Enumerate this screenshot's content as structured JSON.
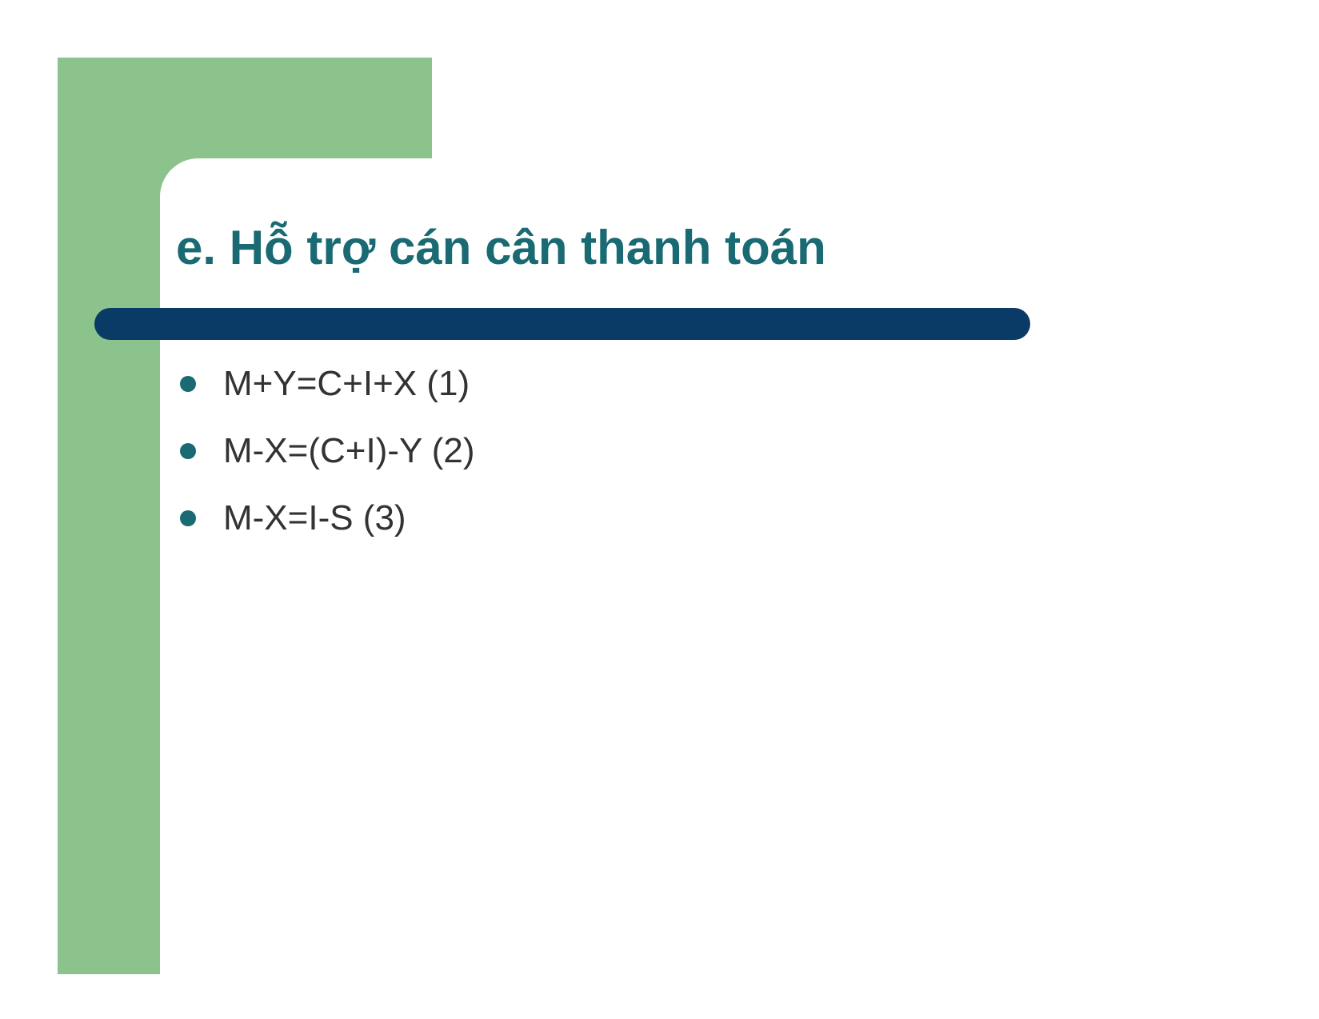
{
  "slide": {
    "title": "e. Hỗ trợ cán cân thanh toán",
    "title_color": "#1a6a73",
    "title_fontsize": 60,
    "title_fontweight": "bold",
    "underline_color": "#0a3a66",
    "underline_radius": 20,
    "green_shape_color": "#8cc28c",
    "background_color": "#ffffff",
    "bullet_color": "#1a6a73",
    "bullet_text_color": "#333333",
    "bullet_fontsize": 44,
    "items": [
      "M+Y=C+I+X (1)",
      "M-X=(C+I)-Y (2)",
      "M-X=I-S (3)"
    ]
  }
}
